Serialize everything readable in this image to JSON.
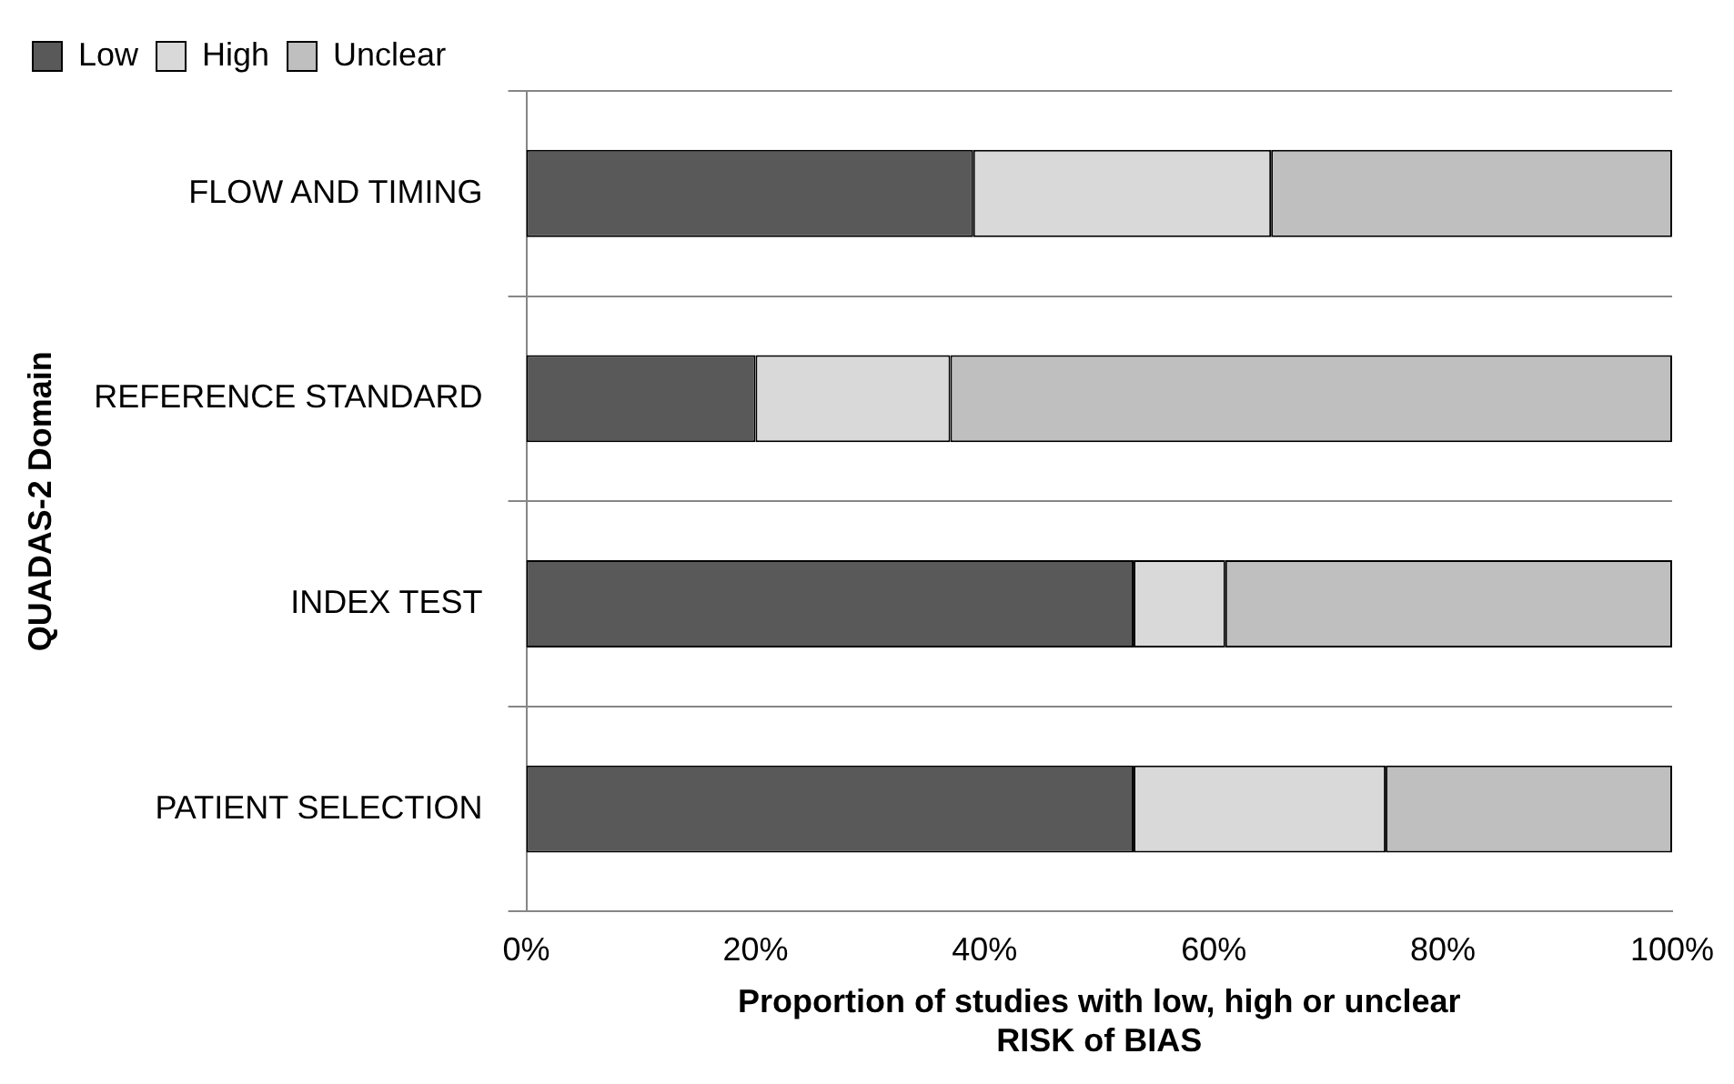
{
  "chart_data": {
    "type": "bar",
    "orientation": "horizontal",
    "stacked": true,
    "ylabel": "QUADAS-2 Domain",
    "xlabel": "Proportion of studies with low, high or unclear\nRISK of BIAS",
    "categories": [
      "FLOW AND TIMING",
      "REFERENCE STANDARD",
      "INDEX TEST",
      "PATIENT SELECTION"
    ],
    "series": [
      {
        "name": "Low",
        "color": "#595959",
        "values": [
          39,
          20,
          53,
          53
        ]
      },
      {
        "name": "High",
        "color": "#d9d9d9",
        "values": [
          26,
          17,
          8,
          22
        ]
      },
      {
        "name": "Unclear",
        "color": "#bfbfbf",
        "values": [
          35,
          63,
          39,
          25
        ]
      }
    ],
    "xlim": [
      0,
      100
    ],
    "xticks": [
      {
        "value": 0,
        "label": "0%"
      },
      {
        "value": 20,
        "label": "20%"
      },
      {
        "value": 40,
        "label": "40%"
      },
      {
        "value": 60,
        "label": "60%"
      },
      {
        "value": 80,
        "label": "80%"
      },
      {
        "value": 100,
        "label": "100%"
      }
    ],
    "grid": "y",
    "legend": "top left"
  }
}
